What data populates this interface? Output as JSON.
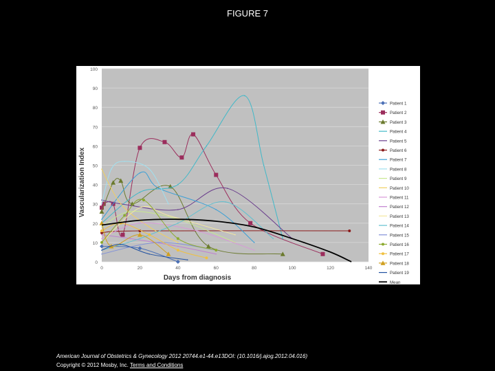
{
  "figure_title": "FIGURE 7",
  "footer": {
    "citation": "American Journal of Obstetrics & Gynecology 2012 20744.e1-44.e13DOI: (10.1016/j.ajog.2012.04.016)",
    "copyright": "Copyright © 2012 Mosby, Inc.",
    "terms_link": "Terms and Conditions"
  },
  "colors": {
    "plot_bg": "#c0c0c0",
    "figure_bg": "#ffffff",
    "page_bg": "#000000",
    "grid": "#d8d8d8"
  },
  "chart_data": {
    "type": "line",
    "title": "",
    "xlabel": "Days from diagnosis",
    "ylabel": "Vascularization Index",
    "xlim": [
      0,
      140
    ],
    "ylim": [
      0,
      100
    ],
    "xticks": [
      0,
      20,
      40,
      60,
      80,
      100,
      120,
      140
    ],
    "yticks": [
      0,
      10,
      20,
      30,
      40,
      50,
      60,
      70,
      80,
      90,
      100
    ],
    "grid": "horizontal",
    "legend_position": "right",
    "series": [
      {
        "name": "Patient 1",
        "color": "#4a6fb5",
        "marker": "diamond",
        "points": [
          [
            0,
            8
          ],
          [
            20,
            7
          ],
          [
            40,
            0
          ]
        ]
      },
      {
        "name": "Patient 2",
        "color": "#9b2d5c",
        "marker": "square",
        "points": [
          [
            0,
            28
          ],
          [
            1,
            30
          ],
          [
            6,
            30
          ],
          [
            11,
            14
          ],
          [
            20,
            59
          ],
          [
            33,
            62
          ],
          [
            42,
            54
          ],
          [
            48,
            66
          ],
          [
            60,
            45
          ],
          [
            78,
            20
          ],
          [
            116,
            4
          ]
        ]
      },
      {
        "name": "Patient 3",
        "color": "#6b7a2e",
        "marker": "triangle",
        "points": [
          [
            0,
            26
          ],
          [
            6,
            41
          ],
          [
            10,
            42
          ],
          [
            16,
            30
          ],
          [
            36,
            39
          ],
          [
            56,
            8
          ],
          [
            95,
            4
          ]
        ]
      },
      {
        "name": "Patient 4",
        "color": "#3fb8c8",
        "marker": "none",
        "points": [
          [
            0,
            20
          ],
          [
            20,
            36
          ],
          [
            40,
            40
          ],
          [
            55,
            60
          ],
          [
            75,
            86
          ],
          [
            85,
            50
          ],
          [
            95,
            12
          ]
        ]
      },
      {
        "name": "Patient 5",
        "color": "#6a3d8c",
        "marker": "none",
        "points": [
          [
            0,
            32
          ],
          [
            10,
            30
          ],
          [
            40,
            27
          ],
          [
            66,
            38
          ],
          [
            100,
            12
          ]
        ]
      },
      {
        "name": "Patient 6",
        "color": "#8b1a1a",
        "marker": "circle",
        "points": [
          [
            0,
            15
          ],
          [
            20,
            16
          ],
          [
            130,
            16
          ]
        ]
      },
      {
        "name": "Patient 7",
        "color": "#3a9fd6",
        "marker": "none",
        "points": [
          [
            0,
            22
          ],
          [
            20,
            46
          ],
          [
            30,
            38
          ],
          [
            60,
            27
          ],
          [
            80,
            10
          ]
        ]
      },
      {
        "name": "Patient 8",
        "color": "#a0e0f0",
        "marker": "none",
        "points": [
          [
            0,
            30
          ],
          [
            5,
            48
          ],
          [
            12,
            52
          ],
          [
            25,
            48
          ],
          [
            35,
            30
          ]
        ]
      },
      {
        "name": "Patient 9",
        "color": "#c8e890",
        "marker": "none",
        "points": [
          [
            0,
            18
          ],
          [
            15,
            26
          ],
          [
            40,
            22
          ],
          [
            70,
            10
          ]
        ]
      },
      {
        "name": "Patient 10",
        "color": "#f0d060",
        "marker": "none",
        "points": [
          [
            0,
            48
          ],
          [
            10,
            30
          ],
          [
            25,
            18
          ],
          [
            40,
            10
          ]
        ]
      },
      {
        "name": "Patient 11",
        "color": "#d898d8",
        "marker": "none",
        "points": [
          [
            0,
            12
          ],
          [
            20,
            20
          ],
          [
            50,
            16
          ],
          [
            80,
            6
          ]
        ]
      },
      {
        "name": "Patient 12",
        "color": "#c080d0",
        "marker": "none",
        "points": [
          [
            0,
            14
          ],
          [
            15,
            12
          ],
          [
            40,
            8
          ],
          [
            60,
            4
          ]
        ]
      },
      {
        "name": "Patient 13",
        "color": "#f4e8a0",
        "marker": "none",
        "points": [
          [
            0,
            10
          ],
          [
            20,
            28
          ],
          [
            35,
            24
          ],
          [
            70,
            14
          ]
        ]
      },
      {
        "name": "Patient 14",
        "color": "#60c0d0",
        "marker": "none",
        "points": [
          [
            0,
            6
          ],
          [
            20,
            12
          ],
          [
            40,
            20
          ],
          [
            65,
            31
          ],
          [
            90,
            12
          ]
        ]
      },
      {
        "name": "Patient 15",
        "color": "#8090d8",
        "marker": "none",
        "points": [
          [
            0,
            4
          ],
          [
            30,
            10
          ],
          [
            60,
            6
          ]
        ]
      },
      {
        "name": "Patient 16",
        "color": "#8caa2e",
        "marker": "circle",
        "points": [
          [
            0,
            10
          ],
          [
            12,
            24
          ],
          [
            22,
            32
          ],
          [
            40,
            12
          ],
          [
            60,
            6
          ]
        ]
      },
      {
        "name": "Patient 17",
        "color": "#f0c040",
        "marker": "circle",
        "points": [
          [
            0,
            16
          ],
          [
            10,
            20
          ],
          [
            25,
            14
          ],
          [
            40,
            6
          ],
          [
            55,
            2
          ]
        ]
      },
      {
        "name": "Patient 18",
        "color": "#d0a020",
        "marker": "triangle",
        "points": [
          [
            0,
            20
          ],
          [
            5,
            8
          ],
          [
            20,
            14
          ],
          [
            35,
            4
          ]
        ]
      },
      {
        "name": "Patient 19",
        "color": "#2050a0",
        "marker": "none",
        "points": [
          [
            0,
            6
          ],
          [
            10,
            9
          ],
          [
            25,
            4
          ],
          [
            45,
            1
          ]
        ]
      },
      {
        "name": "Mean",
        "color": "#000000",
        "marker": "none",
        "points": [
          [
            0,
            19
          ],
          [
            20,
            21.5
          ],
          [
            40,
            22
          ],
          [
            60,
            21
          ],
          [
            80,
            18
          ],
          [
            100,
            12
          ],
          [
            120,
            5
          ],
          [
            131,
            0
          ]
        ]
      }
    ]
  }
}
